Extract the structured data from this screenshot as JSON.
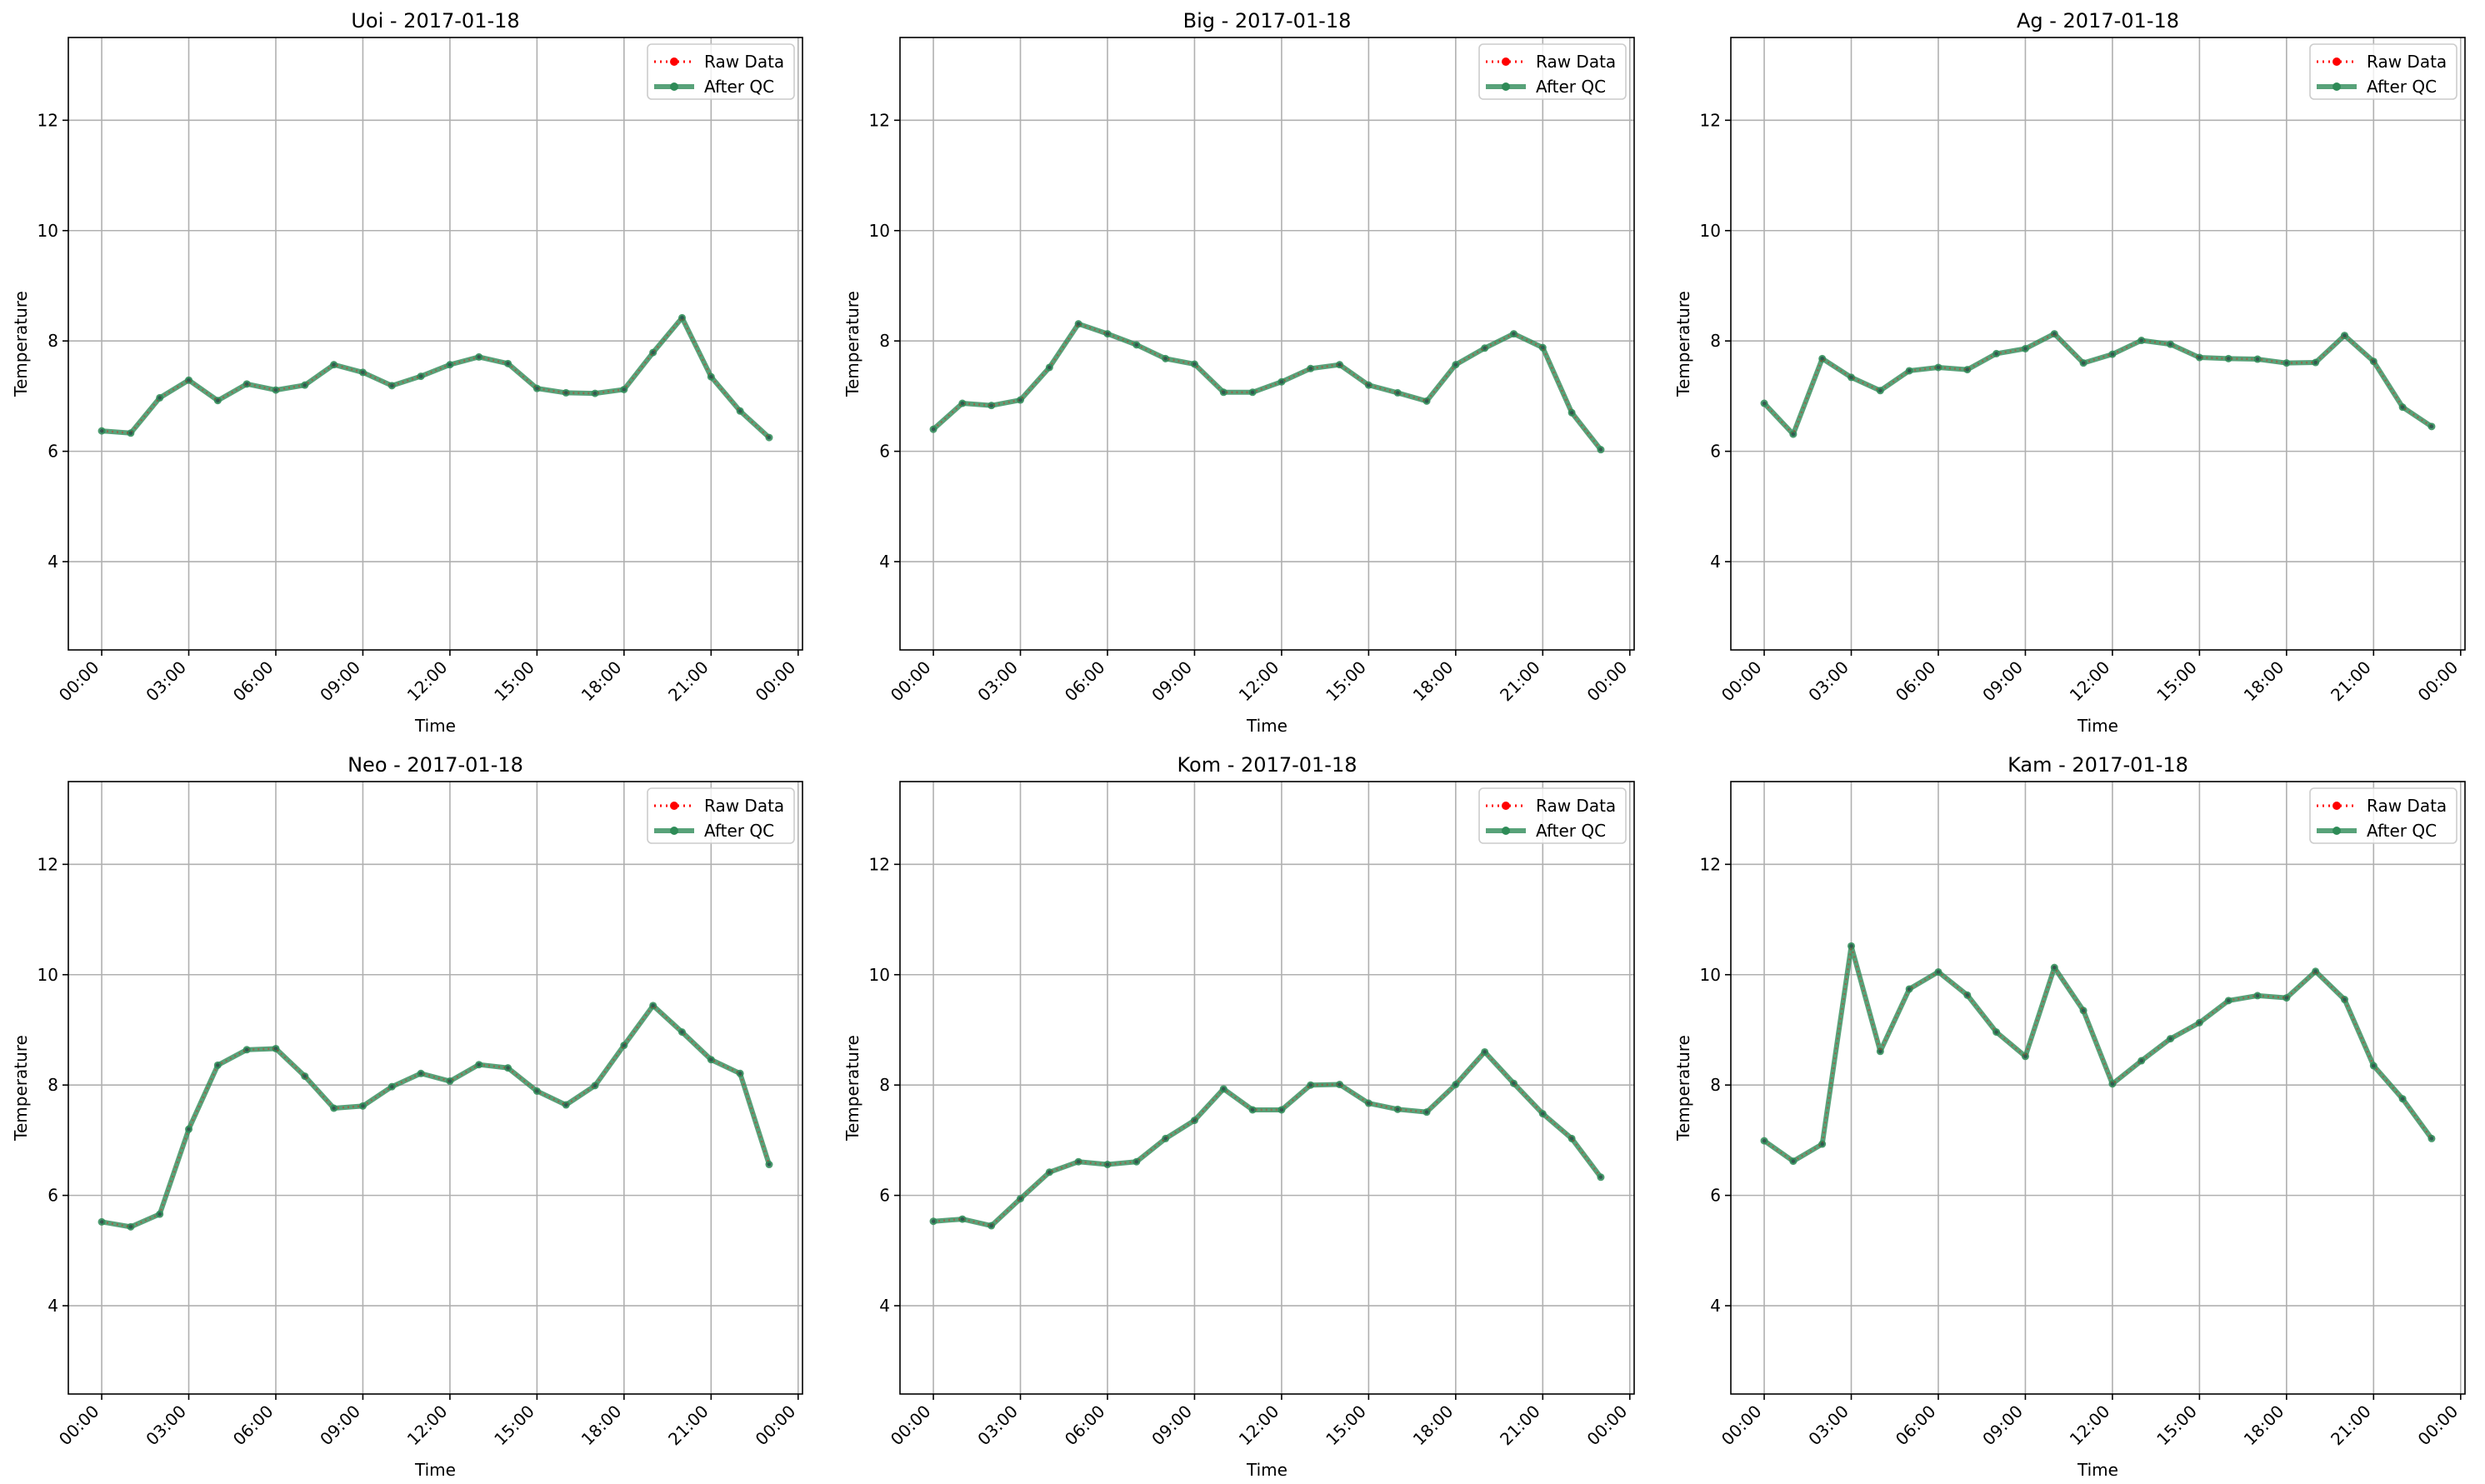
{
  "chart_data": [
    {
      "type": "line",
      "title": "Uoi - 2017-01-18",
      "xlabel": "Time",
      "ylabel": "Temperature",
      "x_ticks": [
        "00:00",
        "03:00",
        "06:00",
        "09:00",
        "12:00",
        "15:00",
        "18:00",
        "21:00",
        "00:00"
      ],
      "y_ticks": [
        "4",
        "6",
        "8",
        "10",
        "12"
      ],
      "ylim": [
        2.4,
        13.5
      ],
      "grid": true,
      "legend_position": "top-right",
      "x_hours": [
        0,
        1,
        2,
        3,
        4,
        5,
        6,
        7,
        8,
        9,
        10,
        11,
        12,
        13,
        14,
        15,
        16,
        17,
        18,
        19,
        20,
        21,
        22,
        23
      ],
      "series": [
        {
          "name": "Raw Data",
          "color": "#ff0000",
          "style": "dotted",
          "values": [
            6.37,
            6.33,
            6.97,
            7.29,
            6.92,
            7.22,
            7.11,
            7.2,
            7.57,
            7.43,
            7.19,
            7.36,
            7.57,
            7.71,
            7.59,
            7.14,
            7.06,
            7.05,
            7.12,
            7.79,
            8.42,
            7.35,
            6.73,
            6.25
          ]
        },
        {
          "name": "After QC",
          "color": "#2e8b57",
          "style": "solid",
          "values": [
            6.37,
            6.33,
            6.97,
            7.29,
            6.92,
            7.22,
            7.11,
            7.2,
            7.57,
            7.43,
            7.19,
            7.36,
            7.57,
            7.71,
            7.59,
            7.14,
            7.06,
            7.05,
            7.12,
            7.79,
            8.42,
            7.35,
            6.73,
            6.25
          ]
        }
      ]
    },
    {
      "type": "line",
      "title": "Big - 2017-01-18",
      "xlabel": "Time",
      "ylabel": "Temperature",
      "x_ticks": [
        "00:00",
        "03:00",
        "06:00",
        "09:00",
        "12:00",
        "15:00",
        "18:00",
        "21:00",
        "00:00"
      ],
      "y_ticks": [
        "4",
        "6",
        "8",
        "10",
        "12"
      ],
      "ylim": [
        2.4,
        13.5
      ],
      "grid": true,
      "legend_position": "top-right",
      "x_hours": [
        0,
        1,
        2,
        3,
        4,
        5,
        6,
        7,
        8,
        9,
        10,
        11,
        12,
        13,
        14,
        15,
        16,
        17,
        18,
        19,
        20,
        21,
        22,
        23
      ],
      "series": [
        {
          "name": "Raw Data",
          "color": "#ff0000",
          "style": "dotted",
          "values": [
            6.4,
            6.87,
            6.83,
            6.93,
            7.52,
            8.31,
            8.13,
            7.93,
            7.68,
            7.58,
            7.07,
            7.07,
            7.26,
            7.5,
            7.57,
            7.2,
            7.06,
            6.91,
            7.57,
            7.87,
            8.13,
            7.88,
            6.7,
            6.03
          ]
        },
        {
          "name": "After QC",
          "color": "#2e8b57",
          "style": "solid",
          "values": [
            6.4,
            6.87,
            6.83,
            6.93,
            7.52,
            8.31,
            8.13,
            7.93,
            7.68,
            7.58,
            7.07,
            7.07,
            7.26,
            7.5,
            7.57,
            7.2,
            7.06,
            6.91,
            7.57,
            7.87,
            8.13,
            7.88,
            6.7,
            6.03
          ]
        }
      ]
    },
    {
      "type": "line",
      "title": "Ag - 2017-01-18",
      "xlabel": "Time",
      "ylabel": "Temperature",
      "x_ticks": [
        "00:00",
        "03:00",
        "06:00",
        "09:00",
        "12:00",
        "15:00",
        "18:00",
        "21:00",
        "00:00"
      ],
      "y_ticks": [
        "4",
        "6",
        "8",
        "10",
        "12"
      ],
      "ylim": [
        2.4,
        13.5
      ],
      "grid": true,
      "legend_position": "top-right",
      "x_hours": [
        0,
        1,
        2,
        3,
        4,
        5,
        6,
        7,
        8,
        9,
        10,
        11,
        12,
        13,
        14,
        15,
        16,
        17,
        18,
        19,
        20,
        21,
        22,
        23
      ],
      "series": [
        {
          "name": "Raw Data",
          "color": "#ff0000",
          "style": "dotted",
          "values": [
            6.87,
            6.31,
            7.68,
            7.34,
            7.1,
            7.46,
            7.52,
            7.48,
            7.77,
            7.86,
            8.13,
            7.6,
            7.76,
            8.01,
            7.94,
            7.7,
            7.68,
            7.67,
            7.6,
            7.61,
            8.1,
            7.63,
            6.8,
            6.45
          ]
        },
        {
          "name": "After QC",
          "color": "#2e8b57",
          "style": "solid",
          "values": [
            6.87,
            6.31,
            7.68,
            7.34,
            7.1,
            7.46,
            7.52,
            7.48,
            7.77,
            7.86,
            8.13,
            7.6,
            7.76,
            8.01,
            7.94,
            7.7,
            7.68,
            7.67,
            7.6,
            7.61,
            8.1,
            7.63,
            6.8,
            6.45
          ]
        }
      ]
    },
    {
      "type": "line",
      "title": "Neo - 2017-01-18",
      "xlabel": "Time",
      "ylabel": "Temperature",
      "x_ticks": [
        "00:00",
        "03:00",
        "06:00",
        "09:00",
        "12:00",
        "15:00",
        "18:00",
        "21:00",
        "00:00"
      ],
      "y_ticks": [
        "4",
        "6",
        "8",
        "10",
        "12"
      ],
      "ylim": [
        2.4,
        13.5
      ],
      "grid": true,
      "legend_position": "top-right",
      "x_hours": [
        0,
        1,
        2,
        3,
        4,
        5,
        6,
        7,
        8,
        9,
        10,
        11,
        12,
        13,
        14,
        15,
        16,
        17,
        18,
        19,
        20,
        21,
        22,
        23
      ],
      "series": [
        {
          "name": "Raw Data",
          "color": "#ff0000",
          "style": "dotted",
          "values": [
            5.52,
            5.43,
            5.66,
            7.2,
            8.36,
            8.64,
            8.66,
            8.16,
            7.58,
            7.62,
            7.97,
            8.21,
            8.07,
            8.37,
            8.31,
            7.89,
            7.64,
            7.99,
            8.72,
            9.44,
            8.96,
            8.46,
            8.21,
            6.56
          ]
        },
        {
          "name": "After QC",
          "color": "#2e8b57",
          "style": "solid",
          "values": [
            5.52,
            5.43,
            5.66,
            7.2,
            8.36,
            8.64,
            8.66,
            8.16,
            7.58,
            7.62,
            7.97,
            8.21,
            8.07,
            8.37,
            8.31,
            7.89,
            7.64,
            7.99,
            8.72,
            9.44,
            8.96,
            8.46,
            8.21,
            6.56
          ]
        }
      ]
    },
    {
      "type": "line",
      "title": "Kom - 2017-01-18",
      "xlabel": "Time",
      "ylabel": "Temperature",
      "x_ticks": [
        "00:00",
        "03:00",
        "06:00",
        "09:00",
        "12:00",
        "15:00",
        "18:00",
        "21:00",
        "00:00"
      ],
      "y_ticks": [
        "4",
        "6",
        "8",
        "10",
        "12"
      ],
      "ylim": [
        2.4,
        13.5
      ],
      "grid": true,
      "legend_position": "top-right",
      "x_hours": [
        0,
        1,
        2,
        3,
        4,
        5,
        6,
        7,
        8,
        9,
        10,
        11,
        12,
        13,
        14,
        15,
        16,
        17,
        18,
        19,
        20,
        21,
        22,
        23
      ],
      "series": [
        {
          "name": "Raw Data",
          "color": "#ff0000",
          "style": "dotted",
          "values": [
            5.53,
            5.57,
            5.45,
            5.94,
            6.42,
            6.61,
            6.56,
            6.61,
            7.03,
            7.36,
            7.93,
            7.55,
            7.55,
            8.0,
            8.01,
            7.67,
            7.56,
            7.51,
            8.01,
            8.6,
            8.03,
            7.48,
            7.03,
            6.33
          ]
        },
        {
          "name": "After QC",
          "color": "#2e8b57",
          "style": "solid",
          "values": [
            5.53,
            5.57,
            5.45,
            5.94,
            6.42,
            6.61,
            6.56,
            6.61,
            7.03,
            7.36,
            7.93,
            7.55,
            7.55,
            8.0,
            8.01,
            7.67,
            7.56,
            7.51,
            8.01,
            8.6,
            8.03,
            7.48,
            7.03,
            6.33
          ]
        }
      ]
    },
    {
      "type": "line",
      "title": "Kam - 2017-01-18",
      "xlabel": "Time",
      "ylabel": "Temperature",
      "x_ticks": [
        "00:00",
        "03:00",
        "06:00",
        "09:00",
        "12:00",
        "15:00",
        "18:00",
        "21:00",
        "00:00"
      ],
      "y_ticks": [
        "4",
        "6",
        "8",
        "10",
        "12"
      ],
      "ylim": [
        2.4,
        13.5
      ],
      "grid": true,
      "legend_position": "top-right",
      "x_hours": [
        0,
        1,
        2,
        3,
        4,
        5,
        6,
        7,
        8,
        9,
        10,
        11,
        12,
        13,
        14,
        15,
        16,
        17,
        18,
        19,
        20,
        21,
        22,
        23
      ],
      "series": [
        {
          "name": "Raw Data",
          "color": "#ff0000",
          "style": "dotted",
          "values": [
            6.99,
            6.62,
            6.93,
            10.52,
            8.61,
            9.74,
            10.05,
            9.63,
            8.96,
            8.52,
            10.13,
            9.35,
            8.02,
            8.44,
            8.84,
            9.13,
            9.53,
            9.62,
            9.58,
            10.06,
            9.55,
            8.35,
            7.75,
            7.03
          ]
        },
        {
          "name": "After QC",
          "color": "#2e8b57",
          "style": "solid",
          "values": [
            6.99,
            6.62,
            6.93,
            10.52,
            8.61,
            9.74,
            10.05,
            9.63,
            8.96,
            8.52,
            10.13,
            9.35,
            8.02,
            8.44,
            8.84,
            9.13,
            9.53,
            9.62,
            9.58,
            10.06,
            9.55,
            8.35,
            7.75,
            7.03
          ]
        }
      ]
    }
  ]
}
